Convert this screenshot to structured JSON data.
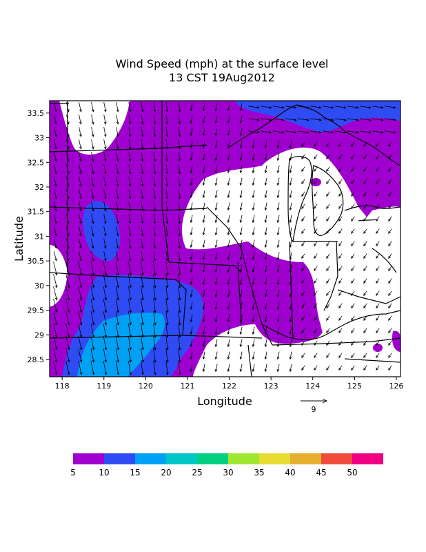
{
  "title_line1": "Wind Speed (mph) at the surface level",
  "title_line2": "13 CST 19Aug2012",
  "chart_data": {
    "type": "heatmap",
    "xlabel": "Longitude",
    "ylabel": "Latitude",
    "xlim": [
      117.7,
      126.1
    ],
    "ylim": [
      28.15,
      33.75
    ],
    "x_ticks": [
      "118",
      "119",
      "120",
      "121",
      "122",
      "123",
      "124",
      "125",
      "126"
    ],
    "y_ticks": [
      "28.5",
      "29",
      "29.5",
      "30",
      "30.5",
      "31",
      "31.5",
      "32",
      "32.5",
      "33",
      "33.5"
    ],
    "reference_vector_label": "9",
    "colorbar": {
      "colors": [
        "#9f00cf",
        "#2f4cf4",
        "#00a0f4",
        "#00c8c8",
        "#00d080",
        "#a0e632",
        "#e6dc32",
        "#e6af2d",
        "#f04b3c",
        "#f00082"
      ],
      "labels": [
        "5",
        "10",
        "15",
        "20",
        "25",
        "30",
        "35",
        "40",
        "45",
        "50"
      ]
    },
    "regions": [
      {
        "name": "5-10 mph",
        "color": "#9f00cf"
      },
      {
        "name": "10-15 mph",
        "color": "#2f4cf4"
      },
      {
        "name": "15-20 mph",
        "color": "#00a0f4"
      }
    ]
  }
}
